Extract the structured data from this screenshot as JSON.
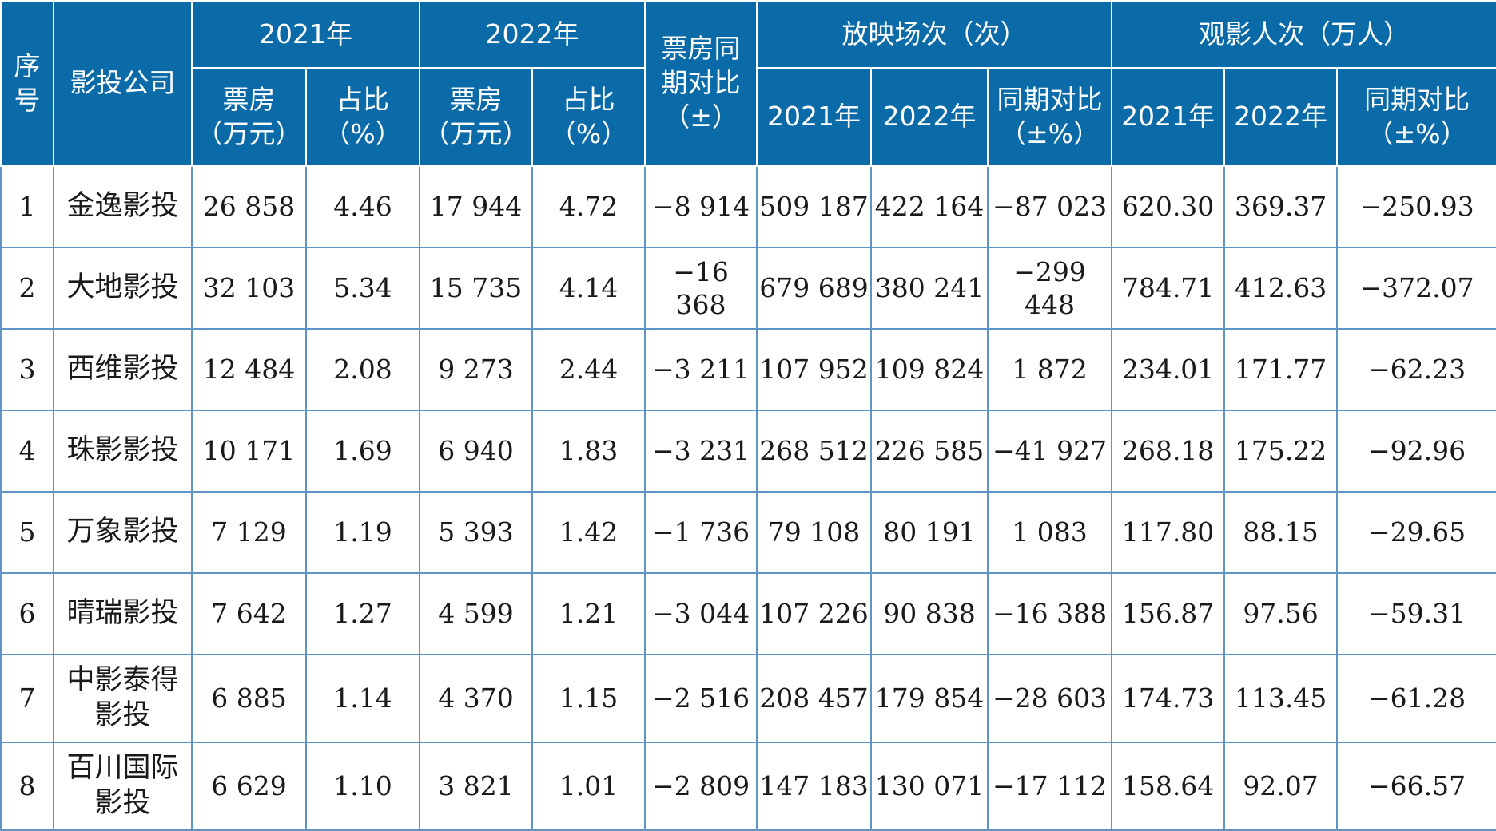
{
  "header": {
    "index": "序号",
    "company": "影投公司",
    "y2021": "2021年",
    "y2022": "2022年",
    "box_change": "票房同期对比（±）",
    "screenings": "放映场次（次）",
    "admissions": "观影人次（万人）",
    "box_office_line1": "票房",
    "box_office_line2": "（万元）",
    "share_line1": "占比",
    "share_line2": "（%）",
    "yoy_line1": "同期对比",
    "yoy_line2": "（±%）"
  },
  "rows": [
    {
      "idx": "1",
      "name": "金逸影投",
      "bo2021": "26 858",
      "sh2021": "4.46",
      "bo2022": "17 944",
      "sh2022": "4.72",
      "bochg": "−8 914",
      "sc2021": "509 187",
      "sc2022": "422 164",
      "scchg": "−87 023",
      "ad2021": "620.30",
      "ad2022": "369.37",
      "adchg": "−250.93"
    },
    {
      "idx": "2",
      "name": "大地影投",
      "bo2021": "32 103",
      "sh2021": "5.34",
      "bo2022": "15 735",
      "sh2022": "4.14",
      "bochg": "−16 368",
      "sc2021": "679 689",
      "sc2022": "380 241",
      "scchg": "−299 448",
      "ad2021": "784.71",
      "ad2022": "412.63",
      "adchg": "−372.07"
    },
    {
      "idx": "3",
      "name": "西维影投",
      "bo2021": "12 484",
      "sh2021": "2.08",
      "bo2022": "9 273",
      "sh2022": "2.44",
      "bochg": "−3 211",
      "sc2021": "107 952",
      "sc2022": "109 824",
      "scchg": "1 872",
      "ad2021": "234.01",
      "ad2022": "171.77",
      "adchg": "−62.23"
    },
    {
      "idx": "4",
      "name": "珠影影投",
      "bo2021": "10 171",
      "sh2021": "1.69",
      "bo2022": "6 940",
      "sh2022": "1.83",
      "bochg": "−3 231",
      "sc2021": "268 512",
      "sc2022": "226 585",
      "scchg": "−41 927",
      "ad2021": "268.18",
      "ad2022": "175.22",
      "adchg": "−92.96"
    },
    {
      "idx": "5",
      "name": "万象影投",
      "bo2021": "7 129",
      "sh2021": "1.19",
      "bo2022": "5 393",
      "sh2022": "1.42",
      "bochg": "−1 736",
      "sc2021": "79 108",
      "sc2022": "80 191",
      "scchg": "1 083",
      "ad2021": "117.80",
      "ad2022": "88.15",
      "adchg": "−29.65"
    },
    {
      "idx": "6",
      "name": "晴瑞影投",
      "bo2021": "7 642",
      "sh2021": "1.27",
      "bo2022": "4 599",
      "sh2022": "1.21",
      "bochg": "−3 044",
      "sc2021": "107 226",
      "sc2022": "90 838",
      "scchg": "−16 388",
      "ad2021": "156.87",
      "ad2022": "97.56",
      "adchg": "−59.31"
    },
    {
      "idx": "7",
      "name_line1": "中影泰得",
      "name_line2": "影投",
      "bo2021": "6 885",
      "sh2021": "1.14",
      "bo2022": "4 370",
      "sh2022": "1.15",
      "bochg": "−2 516",
      "sc2021": "208 457",
      "sc2022": "179 854",
      "scchg": "−28 603",
      "ad2021": "174.73",
      "ad2022": "113.45",
      "adchg": "−61.28"
    },
    {
      "idx": "8",
      "name_line1": "百川国际",
      "name_line2": "影投",
      "bo2021": "6 629",
      "sh2021": "1.10",
      "bo2022": "3 821",
      "sh2022": "1.01",
      "bochg": "−2 809",
      "sc2021": "147 183",
      "sc2022": "130 071",
      "scchg": "−17 112",
      "ad2021": "158.64",
      "ad2022": "92.07",
      "adchg": "−66.57"
    }
  ],
  "colors": {
    "header_bg": "#0b6ba9",
    "grid": "#5f95c4"
  }
}
